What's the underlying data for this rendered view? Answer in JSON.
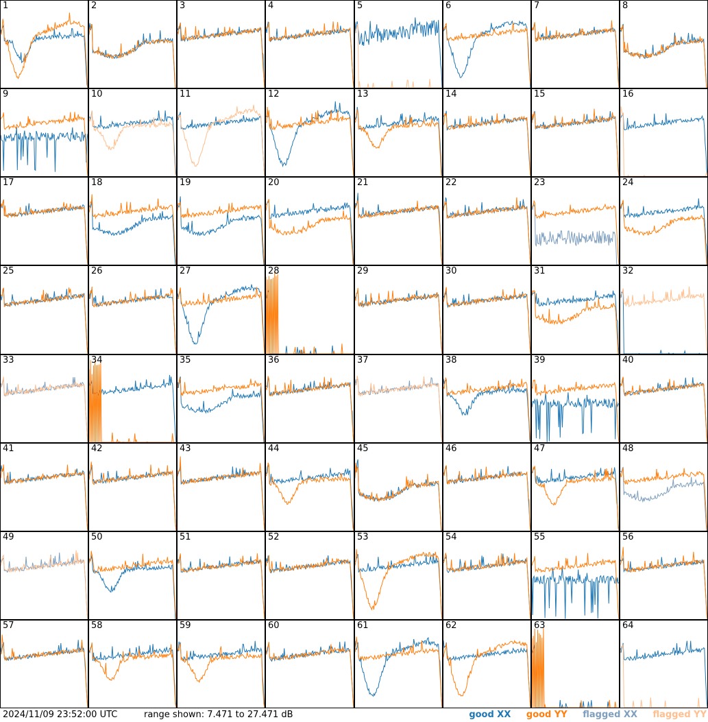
{
  "chart_data": {
    "type": "line",
    "panel_labels": [
      "1",
      "2",
      "3",
      "4",
      "5",
      "6",
      "7",
      "8",
      "9",
      "10",
      "11",
      "12",
      "13",
      "14",
      "15",
      "16",
      "17",
      "18",
      "19",
      "20",
      "21",
      "22",
      "23",
      "24",
      "25",
      "26",
      "27",
      "28",
      "29",
      "30",
      "31",
      "32",
      "33",
      "34",
      "35",
      "36",
      "37",
      "38",
      "39",
      "40",
      "41",
      "42",
      "43",
      "44",
      "45",
      "46",
      "47",
      "48",
      "49",
      "50",
      "51",
      "52",
      "53",
      "54",
      "55",
      "56",
      "57",
      "58",
      "59",
      "60",
      "61",
      "62",
      "63",
      "64"
    ],
    "timestamp": "2024/11/09 23:52:00 UTC",
    "range_text": "range shown: 7.471 to 27.471 dB",
    "ylim": [
      7.471,
      27.471
    ],
    "legend": [
      {
        "name": "good XX",
        "color": "#1f77b4"
      },
      {
        "name": "good YY",
        "color": "#ff7f0e"
      },
      {
        "name": "flagged XX",
        "color": "#7f9fbf"
      },
      {
        "name": "flagged YY",
        "color": "#ffbf8f"
      }
    ],
    "panel_curves": [
      {
        "x": "good-dip",
        "y": "good-deepdip"
      },
      {
        "x": "good-low",
        "y": "good-low"
      },
      {
        "x": "good-flat",
        "y": "good-flat"
      },
      {
        "x": "good-flat",
        "y": "good-flat"
      },
      {
        "x": "good-noisy",
        "y": "flag-bottom"
      },
      {
        "x": "good-deepdip",
        "y": "good-flat"
      },
      {
        "x": "good-flat",
        "y": "good-flat"
      },
      {
        "x": "good-low",
        "y": "good-low"
      },
      {
        "x": "good-spiky",
        "y": "good-flat"
      },
      {
        "x": "good-flat",
        "y": "flag-dip"
      },
      {
        "x": "good-flat",
        "y": "flag-deepdip"
      },
      {
        "x": "good-deepdip",
        "y": "good-flat"
      },
      {
        "x": "good-flat",
        "y": "good-dip"
      },
      {
        "x": "good-flat",
        "y": "good-flat"
      },
      {
        "x": "good-flat",
        "y": "good-flat"
      },
      {
        "x": "good-flat",
        "y": "flag-bottom"
      },
      {
        "x": "good-flat",
        "y": "good-flat"
      },
      {
        "x": "good-low",
        "y": "good-flat"
      },
      {
        "x": "good-low",
        "y": "good-flat"
      },
      {
        "x": "good-flat",
        "y": "good-low"
      },
      {
        "x": "good-flat",
        "y": "good-flat"
      },
      {
        "x": "good-flat",
        "y": "good-flat"
      },
      {
        "x": "flag-noise",
        "y": "good-flat"
      },
      {
        "x": "good-flat",
        "y": "good-low"
      },
      {
        "x": "good-flat",
        "y": "good-flat"
      },
      {
        "x": "good-flat",
        "y": "good-flat"
      },
      {
        "x": "good-deepdip",
        "y": "good-flat"
      },
      {
        "x": "good-bottom",
        "y": "good-spikeonly"
      },
      {
        "x": "good-flat",
        "y": "good-flat"
      },
      {
        "x": "good-flat",
        "y": "good-flat"
      },
      {
        "x": "good-flat",
        "y": "good-low"
      },
      {
        "x": "good-bottom",
        "y": "flag-flat"
      },
      {
        "x": "flag-flat",
        "y": "flag-flat"
      },
      {
        "x": "good-flat",
        "y": "good-spikeonly"
      },
      {
        "x": "good-low",
        "y": "good-flat"
      },
      {
        "x": "good-flat",
        "y": "good-flat"
      },
      {
        "x": "flag-flat",
        "y": "flag-flat"
      },
      {
        "x": "good-dip",
        "y": "good-flat"
      },
      {
        "x": "good-spiky",
        "y": "good-flat"
      },
      {
        "x": "good-flat",
        "y": "good-flat"
      },
      {
        "x": "good-flat",
        "y": "good-flat"
      },
      {
        "x": "good-flat",
        "y": "good-flat"
      },
      {
        "x": "good-flat",
        "y": "good-flat"
      },
      {
        "x": "good-flat",
        "y": "good-dip"
      },
      {
        "x": "good-low",
        "y": "good-low"
      },
      {
        "x": "good-flat",
        "y": "good-flat"
      },
      {
        "x": "good-flat",
        "y": "good-dip"
      },
      {
        "x": "flag-low",
        "y": "good-flat"
      },
      {
        "x": "flag-flat",
        "y": "flag-flat"
      },
      {
        "x": "good-dip",
        "y": "good-flat"
      },
      {
        "x": "good-flat",
        "y": "good-flat"
      },
      {
        "x": "good-flat",
        "y": "good-flat"
      },
      {
        "x": "good-flat",
        "y": "good-deepdip"
      },
      {
        "x": "good-flat",
        "y": "good-flat"
      },
      {
        "x": "good-spiky",
        "y": "good-flat"
      },
      {
        "x": "good-flat",
        "y": "good-flat"
      },
      {
        "x": "good-flat",
        "y": "good-flat"
      },
      {
        "x": "good-flat",
        "y": "good-dip"
      },
      {
        "x": "good-flat",
        "y": "good-dip"
      },
      {
        "x": "good-flat",
        "y": "good-flat"
      },
      {
        "x": "good-deepdip",
        "y": "good-flat"
      },
      {
        "x": "good-flat",
        "y": "good-deepdip"
      },
      {
        "x": "good-bottom",
        "y": "good-spikeonly"
      },
      {
        "x": "good-flat",
        "y": "flag-bottom"
      }
    ]
  }
}
